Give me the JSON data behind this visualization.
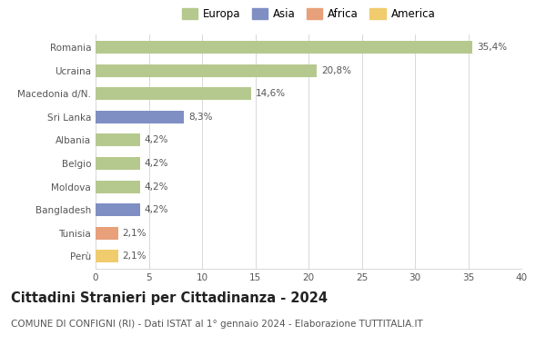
{
  "countries": [
    "Romania",
    "Ucraina",
    "Macedonia d/N.",
    "Sri Lanka",
    "Albania",
    "Belgio",
    "Moldova",
    "Bangladesh",
    "Tunisia",
    "Perù"
  ],
  "values": [
    35.4,
    20.8,
    14.6,
    8.3,
    4.2,
    4.2,
    4.2,
    4.2,
    2.1,
    2.1
  ],
  "labels": [
    "35,4%",
    "20,8%",
    "14,6%",
    "8,3%",
    "4,2%",
    "4,2%",
    "4,2%",
    "4,2%",
    "2,1%",
    "2,1%"
  ],
  "continents": [
    "Europa",
    "Europa",
    "Europa",
    "Asia",
    "Europa",
    "Europa",
    "Europa",
    "Asia",
    "Africa",
    "America"
  ],
  "colors": {
    "Europa": "#b5c98e",
    "Asia": "#7f8fc4",
    "Africa": "#e8a07a",
    "America": "#f0cc6e"
  },
  "legend_order": [
    "Europa",
    "Asia",
    "Africa",
    "America"
  ],
  "legend_colors": [
    "#b5c98e",
    "#7f8fc4",
    "#e8a07a",
    "#f0cc6e"
  ],
  "xlim": [
    0,
    40
  ],
  "xticks": [
    0,
    5,
    10,
    15,
    20,
    25,
    30,
    35,
    40
  ],
  "title": "Cittadini Stranieri per Cittadinanza - 2024",
  "subtitle": "COMUNE DI CONFIGNI (RI) - Dati ISTAT al 1° gennaio 2024 - Elaborazione TUTTITALIA.IT",
  "title_fontsize": 10.5,
  "subtitle_fontsize": 7.5,
  "bar_height": 0.55,
  "background_color": "#ffffff",
  "grid_color": "#d8d8d8",
  "label_fontsize": 7.5,
  "tick_label_fontsize": 7.5
}
